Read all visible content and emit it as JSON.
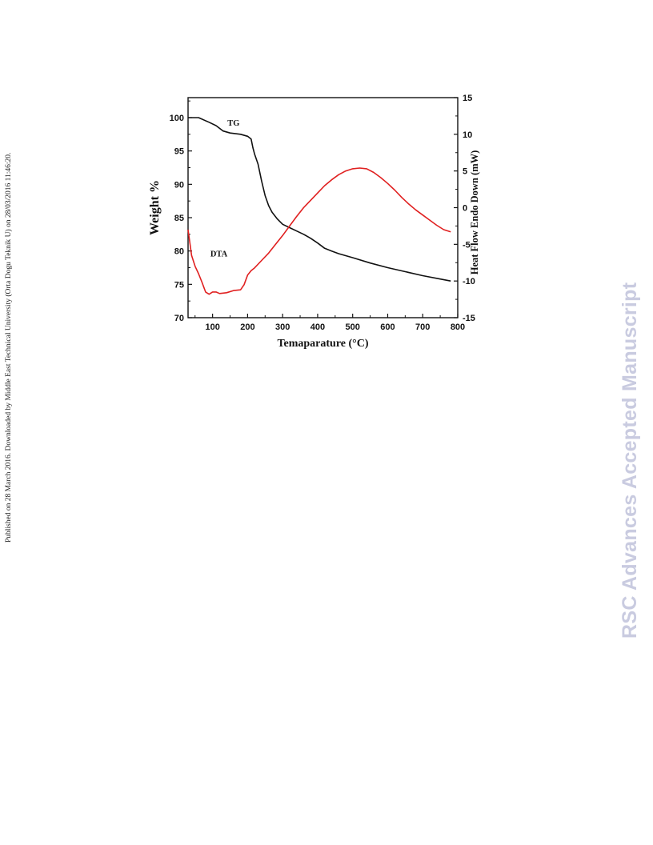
{
  "page": {
    "side_note": "Published on 28 March 2016. Downloaded by Middle East Technical University (Orta Dogu Teknik U) on 28/03/2016 11:46:20.",
    "watermark": "RSC Advances Accepted Manuscript"
  },
  "chart_data": {
    "type": "line",
    "title": "",
    "xlabel": "Temaparature (°C)",
    "ylabel": "Weight %",
    "y2label": "Heat Flow Endo Down (mW)",
    "xlim": [
      30,
      800
    ],
    "ylim": [
      70,
      103
    ],
    "y2lim": [
      -15,
      15
    ],
    "x_ticks": [
      100,
      200,
      300,
      400,
      500,
      600,
      700,
      800
    ],
    "y_ticks": [
      70,
      75,
      80,
      85,
      90,
      95,
      100
    ],
    "y2_ticks": [
      -15,
      -10,
      -5,
      0,
      5,
      10,
      15
    ],
    "grid": false,
    "annotations": [
      {
        "text": "TG",
        "x": 160,
        "y": 98.8
      },
      {
        "text": "DTA",
        "x": 118,
        "y": 79.2
      }
    ],
    "series": [
      {
        "name": "TG",
        "axis": "left",
        "color": "#111111",
        "x": [
          30,
          60,
          90,
          110,
          130,
          150,
          180,
          200,
          210,
          215,
          220,
          230,
          240,
          250,
          260,
          270,
          285,
          300,
          320,
          340,
          360,
          380,
          400,
          420,
          440,
          460,
          500,
          550,
          600,
          650,
          700,
          750,
          780
        ],
        "y": [
          100,
          100,
          99.3,
          98.8,
          98.0,
          97.7,
          97.5,
          97.2,
          96.8,
          95.5,
          94.5,
          93.0,
          90.5,
          88.3,
          86.8,
          85.8,
          84.8,
          84.0,
          83.5,
          83.0,
          82.5,
          81.9,
          81.2,
          80.4,
          80.0,
          79.6,
          79.0,
          78.2,
          77.5,
          76.9,
          76.3,
          75.8,
          75.5
        ]
      },
      {
        "name": "DTA",
        "axis": "right",
        "color": "#e02020",
        "x": [
          30,
          40,
          50,
          60,
          70,
          80,
          90,
          100,
          110,
          120,
          140,
          160,
          180,
          190,
          200,
          210,
          220,
          240,
          260,
          280,
          300,
          320,
          340,
          360,
          380,
          400,
          420,
          440,
          460,
          480,
          500,
          520,
          540,
          560,
          580,
          600,
          620,
          640,
          660,
          680,
          700,
          720,
          740,
          760,
          780
        ],
        "y": [
          -3.0,
          -6.5,
          -8.0,
          -9.0,
          -10.2,
          -11.5,
          -11.8,
          -11.5,
          -11.5,
          -11.7,
          -11.6,
          -11.3,
          -11.2,
          -10.5,
          -9.2,
          -8.6,
          -8.2,
          -7.2,
          -6.2,
          -5.0,
          -3.8,
          -2.5,
          -1.2,
          0.0,
          1.0,
          2.0,
          3.0,
          3.8,
          4.5,
          5.0,
          5.3,
          5.4,
          5.3,
          4.8,
          4.1,
          3.3,
          2.4,
          1.4,
          0.5,
          -0.3,
          -1.0,
          -1.7,
          -2.4,
          -3.0,
          -3.3
        ]
      }
    ]
  }
}
